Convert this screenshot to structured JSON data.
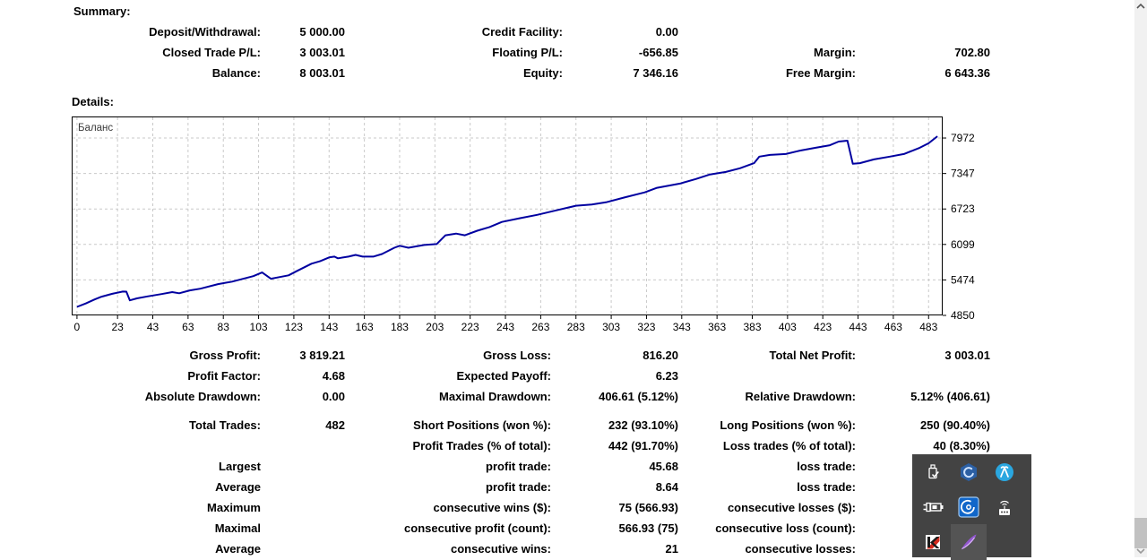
{
  "summary": {
    "title": "Summary:",
    "rows": [
      [
        "Deposit/Withdrawal:",
        "5 000.00",
        "Credit Facility:",
        "0.00",
        "",
        ""
      ],
      [
        "Closed Trade P/L:",
        "3 003.01",
        "Floating P/L:",
        "-656.85",
        "Margin:",
        "702.80"
      ],
      [
        "Balance:",
        "8 003.01",
        "Equity:",
        "7 346.16",
        "Free Margin:",
        "6 643.36"
      ]
    ]
  },
  "details": {
    "title": "Details:",
    "stats1": {
      "rows": [
        [
          "Gross Profit:",
          "3 819.21",
          "Gross Loss:",
          "816.20",
          "Total Net Profit:",
          "3 003.01"
        ],
        [
          "Profit Factor:",
          "4.68",
          "Expected Payoff:",
          "6.23",
          "",
          ""
        ],
        [
          "Absolute Drawdown:",
          "0.00",
          "Maximal Drawdown:",
          "406.61 (5.12%)",
          "Relative Drawdown:",
          "5.12% (406.61)"
        ]
      ]
    },
    "stats2": {
      "rows": [
        [
          "Total Trades:",
          "482",
          "Short Positions (won %):",
          "232 (93.10%)",
          "Long Positions (won %):",
          "250 (90.40%)"
        ],
        [
          "",
          "",
          "Profit Trades (% of total):",
          "442 (91.70%)",
          "Loss trades (% of total):",
          "40 (8.30%)"
        ],
        [
          "Largest",
          "",
          "profit trade:",
          "45.68",
          "loss trade:",
          ""
        ],
        [
          "Average",
          "",
          "profit trade:",
          "8.64",
          "loss trade:",
          ""
        ],
        [
          "Maximum",
          "",
          "consecutive wins ($):",
          "75 (566.93)",
          "consecutive losses ($):",
          ""
        ],
        [
          "Maximal",
          "",
          "consecutive profit (count):",
          "566.93 (75)",
          "consecutive loss (count):",
          ""
        ],
        [
          "Average",
          "",
          "consecutive wins:",
          "21",
          "consecutive losses:",
          ""
        ]
      ]
    }
  },
  "chart_data": {
    "type": "line",
    "legend": "Баланс",
    "title": "",
    "xlabel": "",
    "ylabel": "",
    "x_ticks": [
      0,
      23,
      43,
      63,
      83,
      103,
      123,
      143,
      163,
      183,
      203,
      223,
      243,
      263,
      283,
      303,
      323,
      343,
      363,
      383,
      403,
      423,
      443,
      463,
      483
    ],
    "y_ticks": [
      4850,
      5474,
      6099,
      6723,
      7347,
      7972
    ],
    "x_domain": [
      -3,
      491
    ],
    "y_domain": [
      4850,
      8351
    ],
    "grid": "dashed",
    "legend_position": "top-left",
    "y_axis_side": "right",
    "line_color": "#0000a0",
    "grid_color": "#c9c9c9",
    "series": [
      {
        "name": "Баланс",
        "points": [
          [
            0,
            5000
          ],
          [
            5,
            5060
          ],
          [
            10,
            5130
          ],
          [
            14,
            5180
          ],
          [
            20,
            5230
          ],
          [
            26,
            5270
          ],
          [
            28,
            5268
          ],
          [
            30,
            5115
          ],
          [
            34,
            5150
          ],
          [
            40,
            5185
          ],
          [
            48,
            5225
          ],
          [
            54,
            5260
          ],
          [
            58,
            5240
          ],
          [
            64,
            5290
          ],
          [
            70,
            5320
          ],
          [
            80,
            5400
          ],
          [
            88,
            5445
          ],
          [
            100,
            5540
          ],
          [
            105,
            5605
          ],
          [
            110,
            5495
          ],
          [
            115,
            5525
          ],
          [
            120,
            5555
          ],
          [
            125,
            5635
          ],
          [
            133,
            5760
          ],
          [
            138,
            5805
          ],
          [
            143,
            5870
          ],
          [
            146,
            5885
          ],
          [
            148,
            5855
          ],
          [
            154,
            5885
          ],
          [
            158,
            5915
          ],
          [
            162,
            5885
          ],
          [
            168,
            5885
          ],
          [
            173,
            5930
          ],
          [
            180,
            6040
          ],
          [
            183,
            6075
          ],
          [
            188,
            6040
          ],
          [
            197,
            6090
          ],
          [
            204,
            6105
          ],
          [
            209,
            6260
          ],
          [
            215,
            6290
          ],
          [
            220,
            6260
          ],
          [
            227,
            6340
          ],
          [
            234,
            6405
          ],
          [
            241,
            6495
          ],
          [
            251,
            6560
          ],
          [
            261,
            6620
          ],
          [
            272,
            6700
          ],
          [
            283,
            6780
          ],
          [
            292,
            6800
          ],
          [
            300,
            6840
          ],
          [
            311,
            6930
          ],
          [
            322,
            7015
          ],
          [
            329,
            7095
          ],
          [
            342,
            7170
          ],
          [
            351,
            7250
          ],
          [
            359,
            7330
          ],
          [
            368,
            7375
          ],
          [
            376,
            7440
          ],
          [
            384,
            7530
          ],
          [
            387,
            7645
          ],
          [
            393,
            7675
          ],
          [
            402,
            7690
          ],
          [
            410,
            7750
          ],
          [
            419,
            7800
          ],
          [
            427,
            7845
          ],
          [
            432,
            7910
          ],
          [
            437,
            7925
          ],
          [
            440,
            7518
          ],
          [
            444,
            7530
          ],
          [
            452,
            7595
          ],
          [
            461,
            7645
          ],
          [
            469,
            7690
          ],
          [
            478,
            7800
          ],
          [
            483,
            7880
          ],
          [
            488,
            8003
          ]
        ]
      }
    ]
  },
  "tray": {
    "icons": [
      "usb-drive",
      "hexagon-app",
      "blue-circle-app",
      "power-plug",
      "radar-app",
      "router",
      "kaspersky",
      "feather-pen"
    ]
  }
}
